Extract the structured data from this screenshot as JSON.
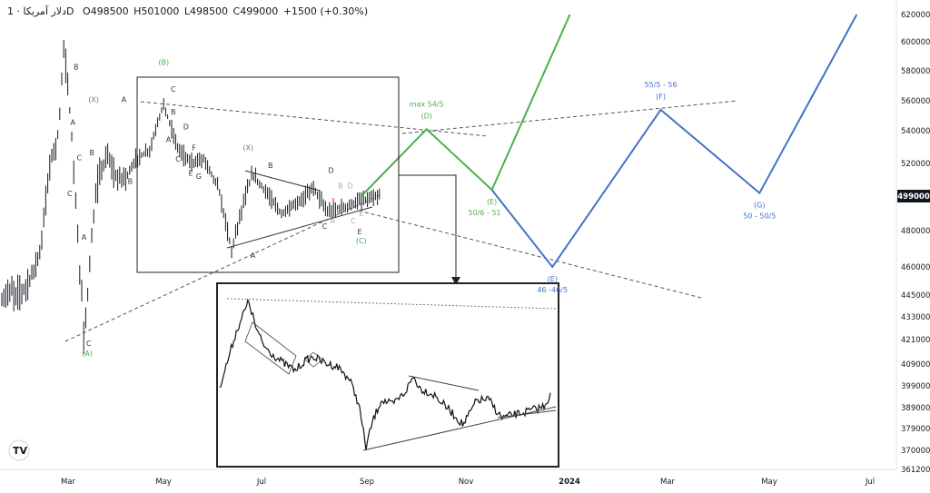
{
  "header": {
    "title": "دلار آمریکا · 1D",
    "ohlc": [
      "O498500",
      "H501000",
      "L498500",
      "C499000",
      "+1500 (+0.30%)"
    ]
  },
  "price_tag": "499000",
  "logo_text": "TV",
  "colors": {
    "green": "#4caf50",
    "blue": "#4472c4",
    "candle": "#131722",
    "red_mark": "#e05555",
    "dashed": "#555555"
  },
  "chart_data": {
    "type": "line",
    "title": "",
    "xlabel": "",
    "ylabel": "",
    "x_ticks": [
      "Mar",
      "May",
      "Jul",
      "Sep",
      "Nov",
      "2024",
      "Mar",
      "May",
      "Jul"
    ],
    "y_ticks": [
      "620000",
      "600000",
      "580000",
      "560000",
      "540000",
      "520000",
      "499000",
      "480000",
      "460000",
      "445000",
      "433000",
      "421000",
      "409000",
      "399000",
      "389000",
      "379000",
      "370000",
      "361200"
    ],
    "grid": false,
    "series": [
      {
        "role": "green-projection",
        "color": "#4caf50",
        "points": [
          {
            "x": "2023-09-01",
            "y": 499000
          },
          {
            "x": "2023-10-12",
            "y": 541000,
            "label": "(D)",
            "note": "max 54/5"
          },
          {
            "x": "2023-11-22",
            "y": 503000,
            "label": "(E)",
            "note": "50/6 - 51"
          },
          {
            "x": "2024-01-10",
            "y": 620000
          }
        ]
      },
      {
        "role": "blue-projection",
        "color": "#4472c4",
        "points": [
          {
            "x": "2023-11-22",
            "y": 503000
          },
          {
            "x": "2023-12-30",
            "y": 460000,
            "label": "(E)",
            "note": "46 -46/5"
          },
          {
            "x": "2024-03-07",
            "y": 554000,
            "label": "(F)",
            "note": "55/5 - 56"
          },
          {
            "x": "2024-05-08",
            "y": 501000,
            "label": "(G)",
            "note": "50 - 50/5"
          },
          {
            "x": "2024-07-08",
            "y": 620000
          }
        ]
      }
    ],
    "wave_labels": [
      {
        "text": "(B)",
        "x": "2023-04-30",
        "y": 584000,
        "color": "green"
      },
      {
        "text": "(A)",
        "x": "2023-03-13",
        "y": 413000,
        "color": "green"
      },
      {
        "text": "(C)",
        "x": "2023-09-01",
        "y": 473000,
        "color": "green"
      },
      {
        "text": "(X)",
        "x": "2023-03-17",
        "y": 559000,
        "color": "gray"
      },
      {
        "text": "(X)",
        "x": "2023-06-22",
        "y": 528000,
        "color": "gray"
      },
      {
        "text": "A",
        "x": "2023-04-05",
        "y": 559000,
        "color": "dark"
      },
      {
        "text": "B",
        "x": "2023-03-06",
        "y": 581000,
        "color": "dark"
      },
      {
        "text": "A",
        "x": "2023-03-04",
        "y": 544000,
        "color": "dark"
      },
      {
        "text": "C",
        "x": "2023-03-08",
        "y": 522000,
        "color": "dark"
      },
      {
        "text": "B",
        "x": "2023-03-16",
        "y": 525000,
        "color": "dark"
      },
      {
        "text": "C",
        "x": "2023-03-02",
        "y": 499000,
        "color": "dark"
      },
      {
        "text": "A",
        "x": "2023-03-11",
        "y": 475000,
        "color": "dark"
      },
      {
        "text": "B",
        "x": "2023-04-09",
        "y": 507000,
        "color": "dark"
      },
      {
        "text": "C",
        "x": "2023-03-14",
        "y": 418000,
        "color": "dark"
      },
      {
        "text": "C",
        "x": "2023-05-06",
        "y": 566000,
        "color": "dark"
      },
      {
        "text": "B",
        "x": "2023-05-06",
        "y": 551000,
        "color": "dark"
      },
      {
        "text": "D",
        "x": "2023-05-14",
        "y": 541000,
        "color": "dark"
      },
      {
        "text": "A",
        "x": "2023-05-03",
        "y": 533000,
        "color": "dark"
      },
      {
        "text": "F",
        "x": "2023-05-19",
        "y": 528000,
        "color": "dark"
      },
      {
        "text": "C",
        "x": "2023-05-09",
        "y": 521000,
        "color": "dark"
      },
      {
        "text": "E",
        "x": "2023-05-17",
        "y": 512000,
        "color": "dark"
      },
      {
        "text": "G",
        "x": "2023-05-22",
        "y": 510000,
        "color": "dark"
      },
      {
        "text": "B",
        "x": "2023-07-06",
        "y": 517000,
        "color": "dark"
      },
      {
        "text": "D",
        "x": "2023-08-13",
        "y": 514000,
        "color": "dark"
      },
      {
        "text": "A",
        "x": "2023-06-25",
        "y": 465000,
        "color": "dark"
      },
      {
        "text": "C",
        "x": "2023-08-09",
        "y": 481000,
        "color": "dark"
      },
      {
        "text": "B",
        "x": "2023-08-19",
        "y": 504000,
        "color": "light"
      },
      {
        "text": "D",
        "x": "2023-08-25",
        "y": 504000,
        "color": "light"
      },
      {
        "text": "C",
        "x": "2023-08-18",
        "y": 489000,
        "color": "light"
      },
      {
        "text": "A",
        "x": "2023-08-14",
        "y": 484000,
        "color": "light"
      },
      {
        "text": "C",
        "x": "2023-08-27",
        "y": 484000,
        "color": "light"
      },
      {
        "text": "E",
        "x": "2023-09-01",
        "y": 488000,
        "color": "light"
      },
      {
        "text": "E",
        "x": "2023-08-31",
        "y": 478000,
        "color": "dark"
      }
    ]
  }
}
